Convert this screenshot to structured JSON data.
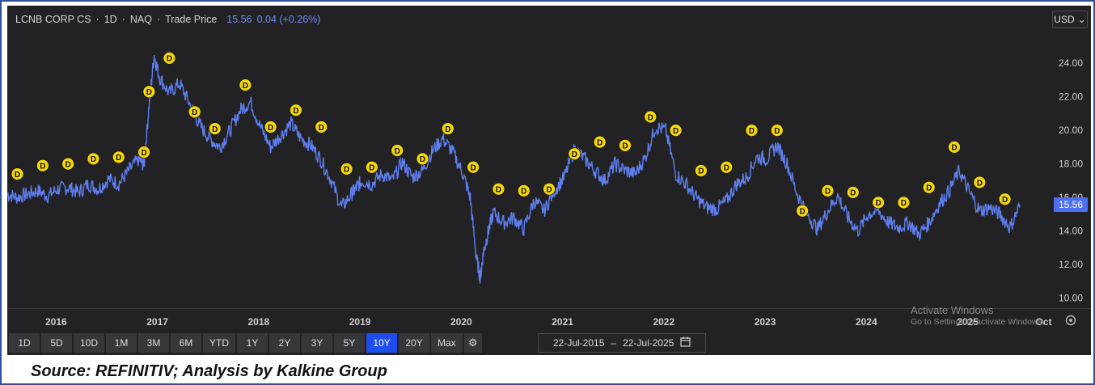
{
  "header": {
    "instrument": "LCNB CORP CS",
    "interval": "1D",
    "exchange": "NAQ",
    "price_type": "Trade Price",
    "last_price": "15.56",
    "change": "0.04 (+0.26%)",
    "sep": "·"
  },
  "currency": {
    "label": "USD",
    "chevron": "chevron-down-icon"
  },
  "price_tag": "15.56",
  "colors": {
    "line": "#5f7ff0",
    "background": "#222224",
    "marker": "#f5d60a",
    "active": "#1f4ef0"
  },
  "range_buttons": [
    "1D",
    "5D",
    "10D",
    "1M",
    "3M",
    "6M",
    "YTD",
    "1Y",
    "2Y",
    "3Y",
    "5Y",
    "10Y",
    "20Y",
    "Max"
  ],
  "active_range": "10Y",
  "date_range": {
    "from": "22-Jul-2015",
    "sep": "–",
    "to": "22-Jul-2025"
  },
  "watermark": {
    "line1": "Activate Windows",
    "line2": "Go to Settings to activate Windows."
  },
  "source_text": "Source: REFINITIV; Analysis by Kalkine Group",
  "chart_data": {
    "type": "line",
    "title": "LCNB CORP CS · 1D · NAQ · Trade Price",
    "ylabel": "",
    "xlabel": "",
    "ylim": [
      9.5,
      25.5
    ],
    "xlim": [
      2015.55,
      2025.85
    ],
    "yticks": [
      "10.00",
      "12.00",
      "14.00",
      "16.00",
      "18.00",
      "20.00",
      "22.00",
      "24.00"
    ],
    "xticks": [
      "2016",
      "2017",
      "2018",
      "2019",
      "2020",
      "2021",
      "2022",
      "2023",
      "2024",
      "2025",
      "Oct"
    ],
    "series": [
      {
        "x": [
          2015.55,
          2015.65,
          2015.75,
          2015.85,
          2015.95,
          2016.05,
          2016.15,
          2016.25,
          2016.35,
          2016.45,
          2016.55,
          2016.65,
          2016.75,
          2016.85,
          2016.9,
          2016.95,
          2017.0,
          2017.05,
          2017.15,
          2017.25,
          2017.35,
          2017.45,
          2017.55,
          2017.65,
          2017.75,
          2017.85,
          2017.95,
          2018.05,
          2018.15,
          2018.25,
          2018.35,
          2018.45,
          2018.55,
          2018.65,
          2018.75,
          2018.85,
          2018.95,
          2019.0,
          2019.05,
          2019.15,
          2019.25,
          2019.35,
          2019.45,
          2019.55,
          2019.65,
          2019.75,
          2019.85,
          2019.95,
          2020.05,
          2020.12,
          2020.18,
          2020.22,
          2020.25,
          2020.3,
          2020.35,
          2020.45,
          2020.55,
          2020.65,
          2020.75,
          2020.85,
          2020.95,
          2021.05,
          2021.15,
          2021.25,
          2021.35,
          2021.45,
          2021.55,
          2021.65,
          2021.75,
          2021.85,
          2021.95,
          2022.05,
          2022.15,
          2022.25,
          2022.35,
          2022.45,
          2022.55,
          2022.65,
          2022.75,
          2022.85,
          2022.95,
          2023.05,
          2023.15,
          2023.25,
          2023.35,
          2023.45,
          2023.55,
          2023.65,
          2023.75,
          2023.85,
          2023.95,
          2024.05,
          2024.15,
          2024.25,
          2024.35,
          2024.45,
          2024.55,
          2024.65,
          2024.75,
          2024.85,
          2024.95,
          2025.05,
          2025.15,
          2025.25,
          2025.35,
          2025.45,
          2025.55
        ],
        "values": [
          16.2,
          16.0,
          16.2,
          16.4,
          16.1,
          16.5,
          16.6,
          16.3,
          16.8,
          16.5,
          17.1,
          16.8,
          17.6,
          18.3,
          17.9,
          21.5,
          24.5,
          23.2,
          22.2,
          22.8,
          21.6,
          20.3,
          19.5,
          19.0,
          20.0,
          21.2,
          21.7,
          20.2,
          19.0,
          19.7,
          20.4,
          19.5,
          19.1,
          18.2,
          17.0,
          15.4,
          16.2,
          16.6,
          17.0,
          16.8,
          17.4,
          17.0,
          18.1,
          17.2,
          17.6,
          18.8,
          19.5,
          18.7,
          17.4,
          16.0,
          12.5,
          11.2,
          12.7,
          14.0,
          15.1,
          14.5,
          14.8,
          14.1,
          15.8,
          15.2,
          16.4,
          17.2,
          18.9,
          18.3,
          17.6,
          17.0,
          18.0,
          17.6,
          17.4,
          18.4,
          20.2,
          20.0,
          17.4,
          16.8,
          16.0,
          15.4,
          15.3,
          15.8,
          16.8,
          17.2,
          18.4,
          18.3,
          19.1,
          18.0,
          16.2,
          15.0,
          14.1,
          15.2,
          16.1,
          14.8,
          14.0,
          15.0,
          15.2,
          14.5,
          14.2,
          14.5,
          13.8,
          14.5,
          15.6,
          16.4,
          17.6,
          16.3,
          15.2,
          15.4,
          15.0,
          14.2,
          15.56
        ]
      }
    ],
    "dividend_markers": {
      "label": "D",
      "dates": [
        2015.65,
        2015.9,
        2016.15,
        2016.4,
        2016.65,
        2016.9,
        2016.95,
        2017.15,
        2017.4,
        2017.6,
        2017.9,
        2018.15,
        2018.4,
        2018.65,
        2018.9,
        2019.15,
        2019.4,
        2019.65,
        2019.9,
        2020.15,
        2020.4,
        2020.65,
        2020.9,
        2021.15,
        2021.4,
        2021.65,
        2021.9,
        2022.15,
        2022.4,
        2022.65,
        2022.9,
        2023.15,
        2023.4,
        2023.65,
        2023.9,
        2024.15,
        2024.4,
        2024.65,
        2024.9,
        2025.15,
        2025.4
      ],
      "values": [
        17.4,
        17.9,
        18.0,
        18.3,
        18.4,
        18.7,
        22.3,
        24.3,
        21.1,
        20.1,
        22.7,
        20.2,
        21.2,
        20.2,
        17.7,
        17.8,
        18.8,
        18.3,
        20.1,
        17.8,
        16.5,
        16.4,
        16.5,
        18.6,
        19.3,
        19.1,
        20.8,
        20.0,
        17.6,
        17.8,
        20.0,
        20.0,
        15.2,
        16.4,
        16.3,
        15.7,
        15.7,
        16.6,
        19.0,
        16.9,
        15.9
      ]
    }
  }
}
